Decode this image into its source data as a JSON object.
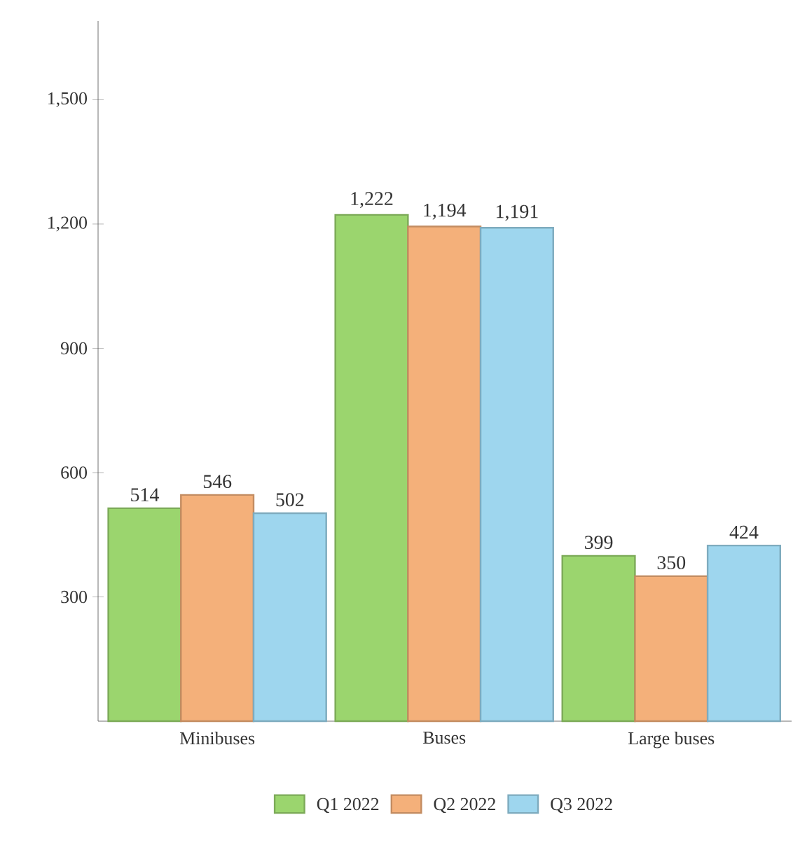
{
  "chart_data": {
    "type": "bar",
    "categories": [
      "Minibuses",
      "Buses",
      "Large buses"
    ],
    "series": [
      {
        "name": "Q1 2022",
        "color": "#9bd56e",
        "values": [
          514,
          1222,
          399
        ],
        "value_labels": [
          "514",
          "1,222",
          "399"
        ]
      },
      {
        "name": "Q2 2022",
        "color": "#f4b07a",
        "values": [
          546,
          1194,
          350
        ],
        "value_labels": [
          "546",
          "1,194",
          "350"
        ]
      },
      {
        "name": "Q3 2022",
        "color": "#9ed6ee",
        "values": [
          502,
          1191,
          424
        ],
        "value_labels": [
          "502",
          "1,191",
          "424"
        ]
      }
    ],
    "ylim": [
      0,
      1690
    ],
    "yticks": [
      300,
      600,
      900,
      {
        "value": 1200,
        "label": "1,200"
      },
      {
        "value": 1500,
        "label": "1,500"
      }
    ],
    "legend": "bottom"
  }
}
